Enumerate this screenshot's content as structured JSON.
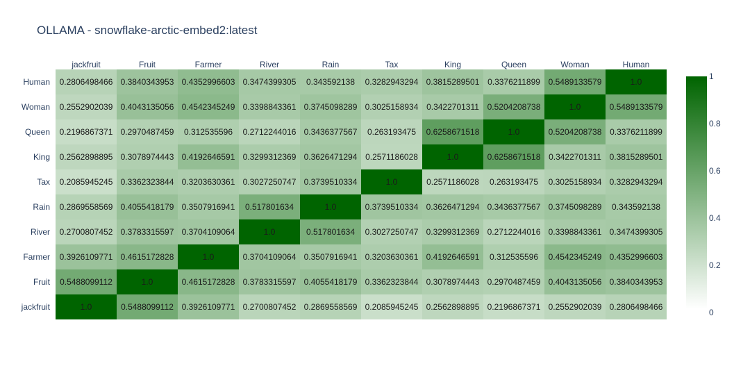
{
  "chart_data": {
    "type": "heatmap",
    "title": "OLLAMA - snowflake-arctic-embed2:latest",
    "x_labels": [
      "jackfruit",
      "Fruit",
      "Farmer",
      "River",
      "Rain",
      "Tax",
      "King",
      "Queen",
      "Woman",
      "Human"
    ],
    "y_labels": [
      "jackfruit",
      "Fruit",
      "Farmer",
      "River",
      "Rain",
      "Tax",
      "King",
      "Queen",
      "Woman",
      "Human"
    ],
    "z": [
      [
        "1.0",
        "0.5488099112",
        "0.3926109771",
        "0.2700807452",
        "0.2869558569",
        "0.2085945245",
        "0.2562898895",
        "0.2196867371",
        "0.2552902039",
        "0.2806498466"
      ],
      [
        "0.5488099112",
        "1.0",
        "0.4615172828",
        "0.3783315597",
        "0.4055418179",
        "0.3362323844",
        "0.3078974443",
        "0.2970487459",
        "0.4043135056",
        "0.3840343953"
      ],
      [
        "0.3926109771",
        "0.4615172828",
        "1.0",
        "0.3704109064",
        "0.3507916941",
        "0.3203630361",
        "0.4192646591",
        "0.312535596",
        "0.4542345249",
        "0.4352996603"
      ],
      [
        "0.2700807452",
        "0.3783315597",
        "0.3704109064",
        "1.0",
        "0.517801634",
        "0.3027250747",
        "0.3299312369",
        "0.2712244016",
        "0.3398843361",
        "0.3474399305"
      ],
      [
        "0.2869558569",
        "0.4055418179",
        "0.3507916941",
        "0.517801634",
        "1.0",
        "0.3739510334",
        "0.3626471294",
        "0.3436377567",
        "0.3745098289",
        "0.343592138"
      ],
      [
        "0.2085945245",
        "0.3362323844",
        "0.3203630361",
        "0.3027250747",
        "0.3739510334",
        "1.0",
        "0.2571186028",
        "0.263193475",
        "0.3025158934",
        "0.3282943294"
      ],
      [
        "0.2562898895",
        "0.3078974443",
        "0.4192646591",
        "0.3299312369",
        "0.3626471294",
        "0.2571186028",
        "1.0",
        "0.6258671518",
        "0.3422701311",
        "0.3815289501"
      ],
      [
        "0.2196867371",
        "0.2970487459",
        "0.312535596",
        "0.2712244016",
        "0.3436377567",
        "0.263193475",
        "0.6258671518",
        "1.0",
        "0.5204208738",
        "0.3376211899"
      ],
      [
        "0.2552902039",
        "0.4043135056",
        "0.4542345249",
        "0.3398843361",
        "0.3745098289",
        "0.3025158934",
        "0.3422701311",
        "0.5204208738",
        "1.0",
        "0.5489133579"
      ],
      [
        "0.2806498466",
        "0.3840343953",
        "0.4352996603",
        "0.3474399305",
        "0.343592138",
        "0.3282943294",
        "0.3815289501",
        "0.3376211899",
        "0.5489133579",
        "1.0"
      ]
    ],
    "zlim": [
      0,
      1
    ],
    "colorscale": [
      "#ffffff",
      "#006400"
    ],
    "colorbar_ticks": [
      "0",
      "0.2",
      "0.4",
      "0.6",
      "0.8",
      "1"
    ],
    "x_axis_position": "top",
    "y_order": "bottom-to-top",
    "grid": false
  }
}
